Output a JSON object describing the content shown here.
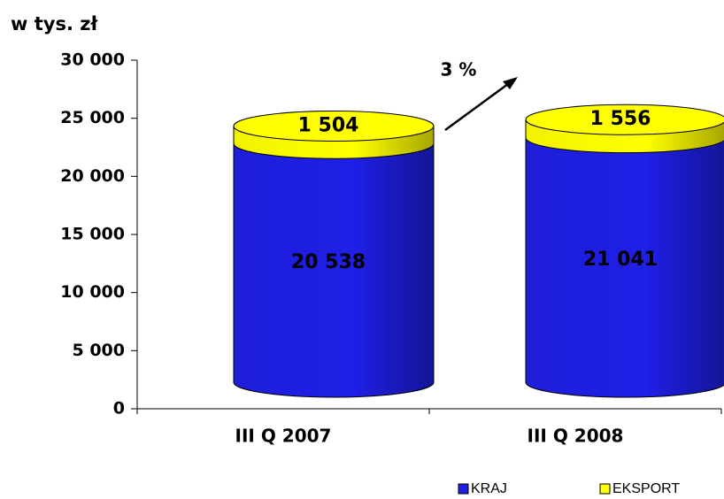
{
  "chart_data": {
    "type": "bar",
    "stacked": true,
    "title": "w tys. zł",
    "annotation": "3 %",
    "categories": [
      "III Q 2007",
      "III Q 2008"
    ],
    "series": [
      {
        "name": "KRAJ",
        "color": "#1f1fe6",
        "values": [
          20538,
          21041
        ],
        "value_labels": [
          "20 538",
          "21 041"
        ]
      },
      {
        "name": "EKSPORT",
        "color": "#ffff00",
        "values": [
          1504,
          1556
        ],
        "value_labels": [
          "1 504",
          "1 556"
        ]
      }
    ],
    "ylim": [
      0,
      30000
    ],
    "yticks": [
      0,
      {
        "value": 5000,
        "label": "5 000"
      },
      {
        "value": 10000,
        "label": "10 000"
      },
      {
        "value": 15000,
        "label": "15 000"
      },
      {
        "value": 20000,
        "label": "20 000"
      },
      {
        "value": 25000,
        "label": "25 000"
      },
      {
        "value": 30000,
        "label": "30 000"
      }
    ]
  }
}
